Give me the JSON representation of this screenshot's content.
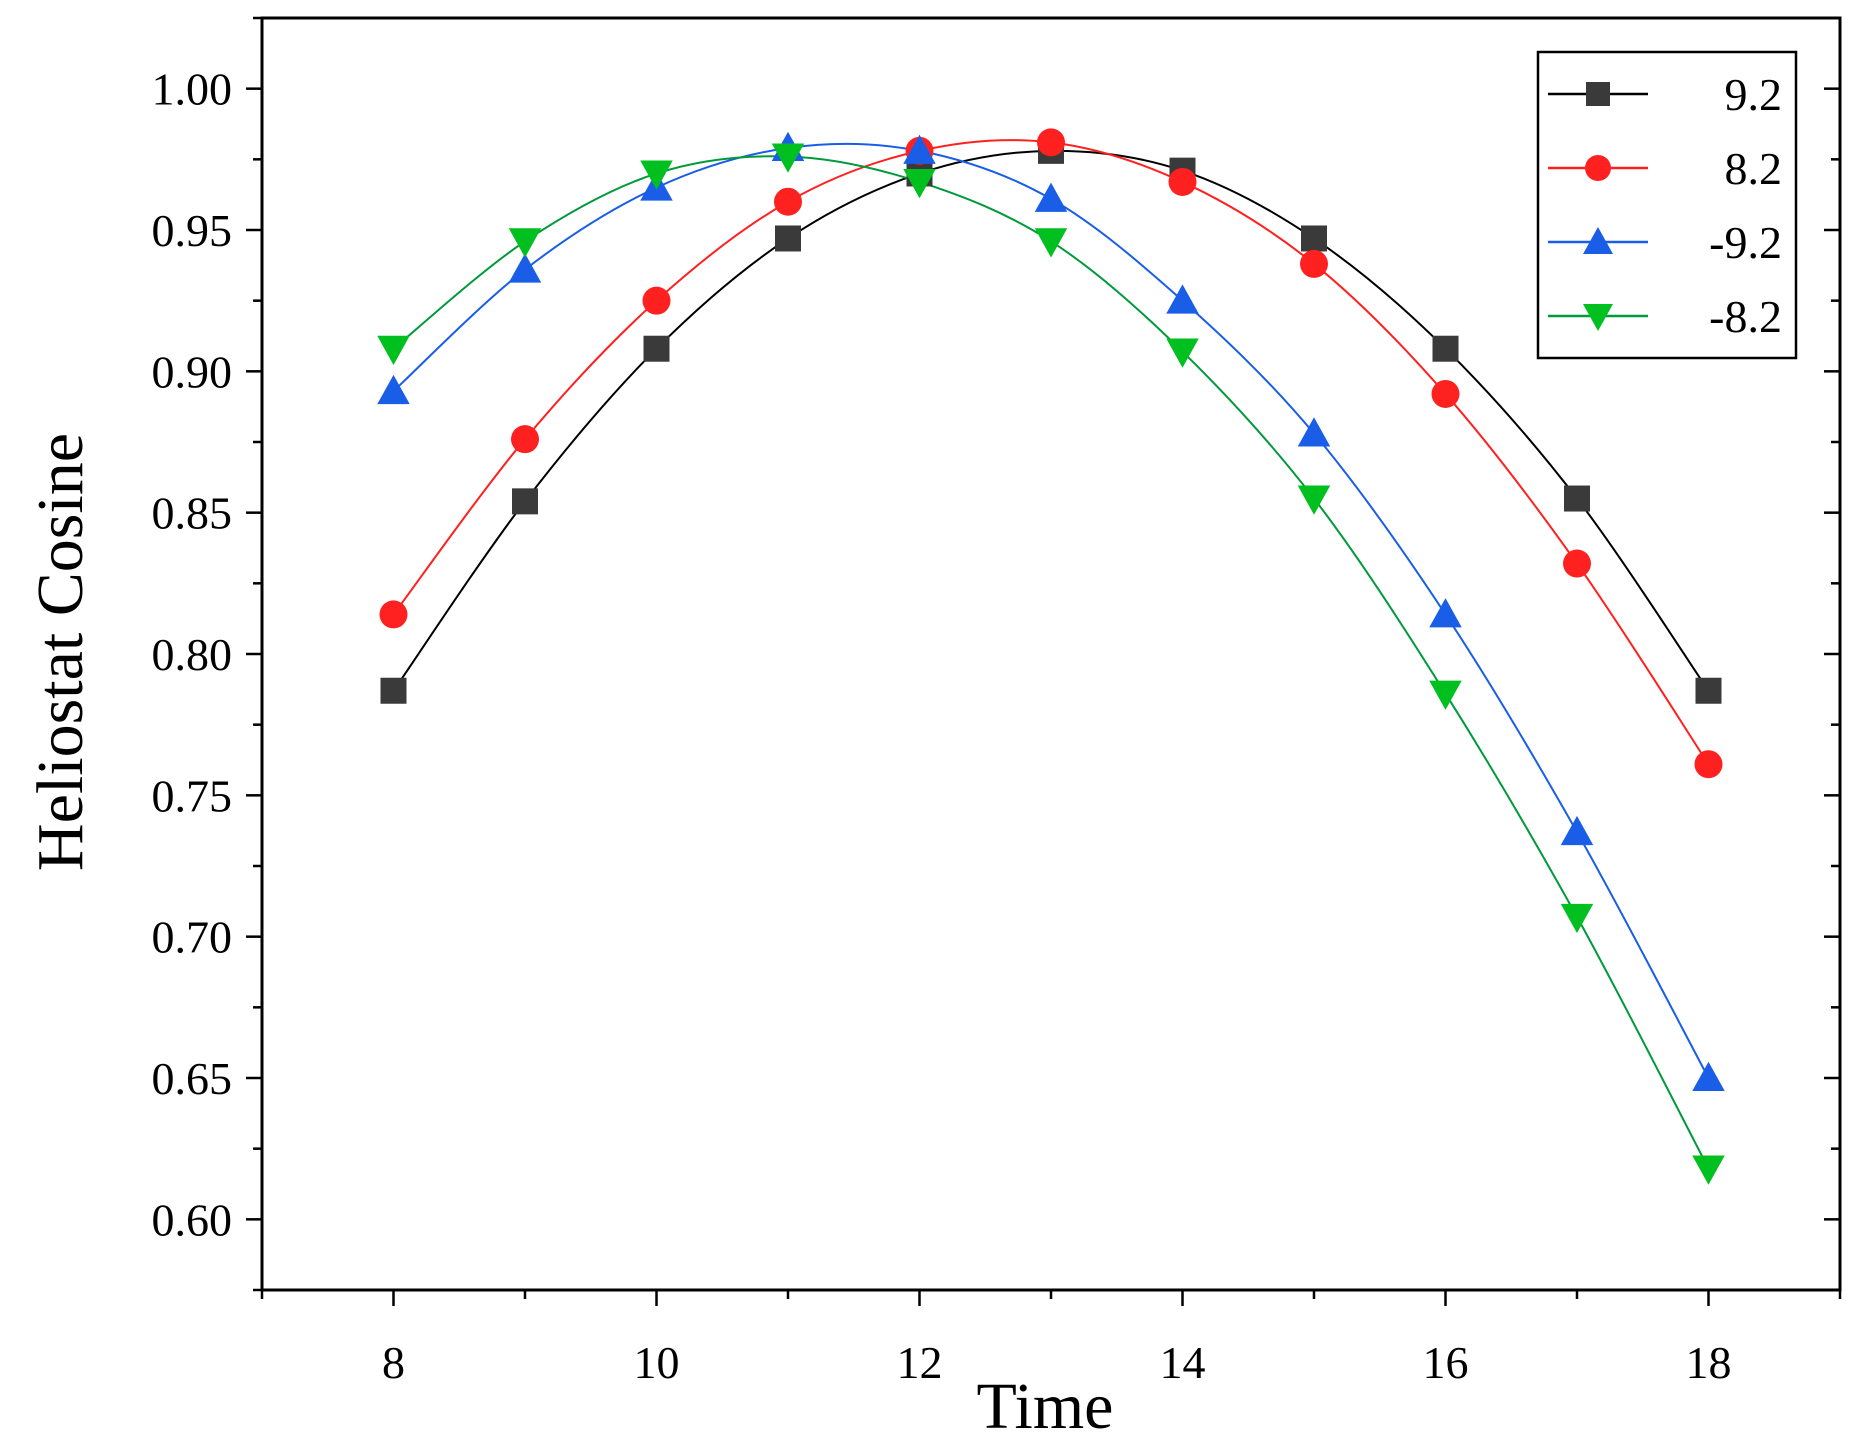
{
  "chart_data": {
    "type": "line",
    "title": "",
    "xlabel": "Time",
    "ylabel": "Heliostat Cosine",
    "xlim": [
      7,
      19
    ],
    "ylim": [
      0.575,
      1.025
    ],
    "xticks": [
      8,
      10,
      12,
      14,
      16,
      18
    ],
    "xtick_labels": [
      "8",
      "10",
      "12",
      "14",
      "16",
      "18"
    ],
    "yticks": [
      0.6,
      0.65,
      0.7,
      0.75,
      0.8,
      0.85,
      0.9,
      0.95,
      1.0
    ],
    "ytick_labels": [
      "0.60",
      "0.65",
      "0.70",
      "0.75",
      "0.80",
      "0.85",
      "0.90",
      "0.95",
      "1.00"
    ],
    "grid": false,
    "legend_position": "top-right",
    "x": [
      8,
      9,
      10,
      11,
      12,
      13,
      14,
      15,
      16,
      17,
      18
    ],
    "series": [
      {
        "name": "9.2",
        "marker": "square",
        "color": "#3a3a3a",
        "line_color": "#000000",
        "values": [
          0.787,
          0.854,
          0.908,
          0.947,
          0.97,
          0.978,
          0.971,
          0.947,
          0.908,
          0.855,
          0.787
        ]
      },
      {
        "name": "8.2",
        "marker": "circle",
        "color": "#ff2020",
        "line_color": "#ff2020",
        "values": [
          0.814,
          0.876,
          0.925,
          0.96,
          0.978,
          0.981,
          0.967,
          0.938,
          0.892,
          0.832,
          0.761
        ]
      },
      {
        "name": "-9.2",
        "marker": "triangle-up",
        "color": "#1a5ee8",
        "line_color": "#1a5ee8",
        "values": [
          0.893,
          0.936,
          0.965,
          0.979,
          0.978,
          0.961,
          0.925,
          0.878,
          0.814,
          0.737,
          0.65
        ]
      },
      {
        "name": "-8.2",
        "marker": "triangle-down",
        "color": "#00c020",
        "line_color": "#009a3a",
        "values": [
          0.908,
          0.946,
          0.97,
          0.976,
          0.967,
          0.946,
          0.907,
          0.855,
          0.786,
          0.707,
          0.618
        ]
      }
    ]
  }
}
